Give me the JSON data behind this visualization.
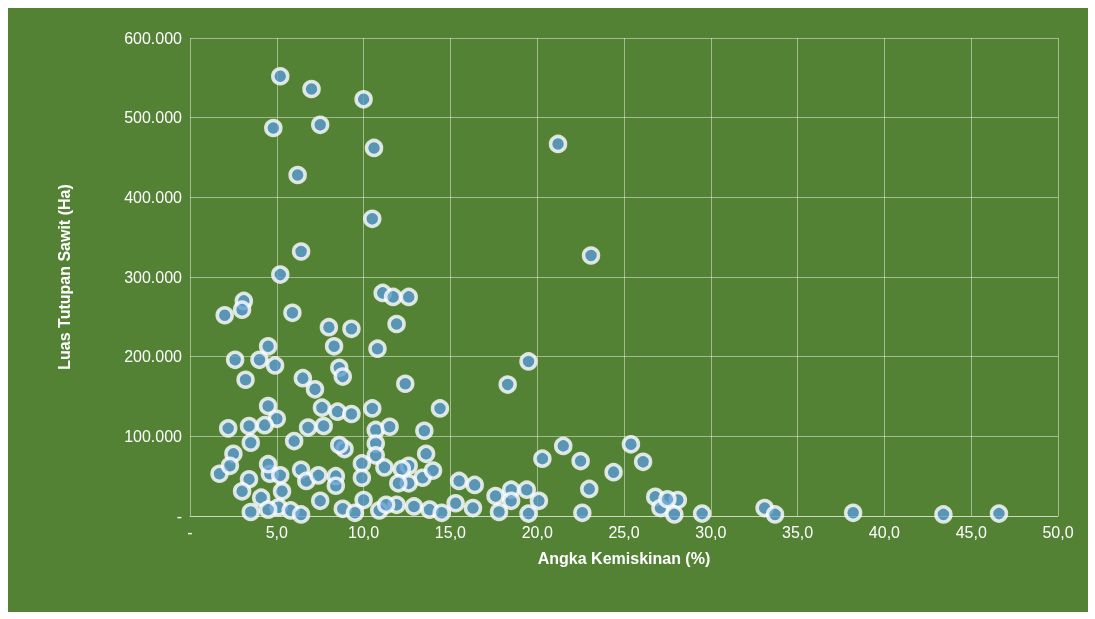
{
  "chart_data": {
    "type": "scatter",
    "xlabel": "Angka Kemiskinan (%)",
    "ylabel": "Luas Tutupan Sawit (Ha)",
    "xlim": [
      0,
      50
    ],
    "ylim": [
      0,
      600000
    ],
    "xticks": [
      {
        "value": 0,
        "label": "-"
      },
      {
        "value": 5,
        "label": "5,0"
      },
      {
        "value": 10,
        "label": "10,0"
      },
      {
        "value": 15,
        "label": "15,0"
      },
      {
        "value": 20,
        "label": "20,0"
      },
      {
        "value": 25,
        "label": "25,0"
      },
      {
        "value": 30,
        "label": "30,0"
      },
      {
        "value": 35,
        "label": "35,0"
      },
      {
        "value": 40,
        "label": "40,0"
      },
      {
        "value": 45,
        "label": "45,0"
      },
      {
        "value": 50,
        "label": "50,0"
      }
    ],
    "yticks": [
      {
        "value": 0,
        "label": "-"
      },
      {
        "value": 100000,
        "label": "100.000"
      },
      {
        "value": 200000,
        "label": "200.000"
      },
      {
        "value": 300000,
        "label": "300.000"
      },
      {
        "value": 400000,
        "label": "400.000"
      },
      {
        "value": 500000,
        "label": "500.000"
      },
      {
        "value": 600000,
        "label": "600.000"
      }
    ],
    "grid": true,
    "marker": "circle",
    "series": [
      {
        "color": "#5b9bd5",
        "x": [
          5.2,
          7.0,
          10.0,
          4.8,
          7.5,
          10.6,
          21.2,
          6.2,
          10.5,
          6.4,
          23.1,
          5.2,
          11.1,
          11.7,
          12.6,
          3.1,
          3.0,
          2.0,
          5.9,
          11.9,
          8.0,
          9.3,
          4.5,
          2.6,
          4.0,
          4.9,
          8.3,
          10.8,
          3.2,
          6.5,
          7.2,
          8.6,
          8.8,
          12.4,
          4.5,
          5.0,
          4.3,
          3.4,
          2.2,
          7.6,
          8.5,
          9.3,
          10.5,
          7.7,
          6.8,
          10.7,
          11.5,
          14.4,
          13.5,
          3.5,
          6.0,
          8.9,
          8.6,
          10.7,
          2.5,
          13.6,
          10.7,
          1.7,
          2.3,
          3.4,
          4.6,
          4.5,
          5.2,
          6.4,
          6.7,
          7.4,
          8.4,
          9.9,
          9.9,
          11.2,
          12.6,
          12.2,
          13.4,
          14.0,
          12.6,
          12.0,
          15.5,
          16.4,
          3.0,
          5.3,
          4.1,
          8.4,
          7.5,
          10.0,
          3.5,
          5.1,
          5.8,
          8.8,
          9.5,
          11.9,
          12.9,
          13.8,
          14.5,
          15.3,
          16.3,
          10.9,
          11.3,
          6.4,
          4.5,
          19.5,
          18.3,
          21.5,
          20.3,
          22.5,
          25.4,
          26.1,
          24.4,
          23.0,
          17.6,
          18.5,
          19.4,
          20.1,
          18.5,
          17.8,
          19.5,
          22.6,
          26.8,
          28.1,
          27.1,
          27.9,
          29.5,
          33.1,
          33.7,
          38.2,
          43.4,
          46.6,
          27.5
        ],
        "values": [
          552000,
          536000,
          523000,
          487000,
          491000,
          462000,
          467000,
          428000,
          373000,
          332000,
          327000,
          303000,
          280000,
          275000,
          275000,
          270000,
          259000,
          252000,
          255000,
          241000,
          237000,
          235000,
          213000,
          196000,
          196000,
          189000,
          213000,
          210000,
          171000,
          173000,
          159000,
          186000,
          175000,
          166000,
          138000,
          122000,
          114000,
          113000,
          110000,
          136000,
          131000,
          128000,
          135000,
          113000,
          111000,
          108000,
          112000,
          135000,
          107000,
          92000,
          94000,
          84000,
          89000,
          91000,
          78000,
          78000,
          76000,
          53000,
          63000,
          46000,
          53000,
          65000,
          51000,
          58000,
          44000,
          51000,
          50000,
          66000,
          48000,
          61000,
          63000,
          59000,
          48000,
          57000,
          41000,
          41000,
          44000,
          39000,
          31000,
          31000,
          23000,
          38000,
          19000,
          20000,
          5000,
          11000,
          7000,
          9000,
          4000,
          14000,
          12000,
          8000,
          4000,
          16000,
          10000,
          7000,
          14000,
          2000,
          8000,
          194000,
          165000,
          88000,
          72000,
          69000,
          90000,
          68000,
          55000,
          34000,
          25000,
          33000,
          33000,
          19000,
          19000,
          5000,
          3000,
          4000,
          24000,
          20000,
          10000,
          2000,
          3000,
          10000,
          2000,
          4000,
          2000,
          3000,
          21000
        ]
      }
    ]
  }
}
